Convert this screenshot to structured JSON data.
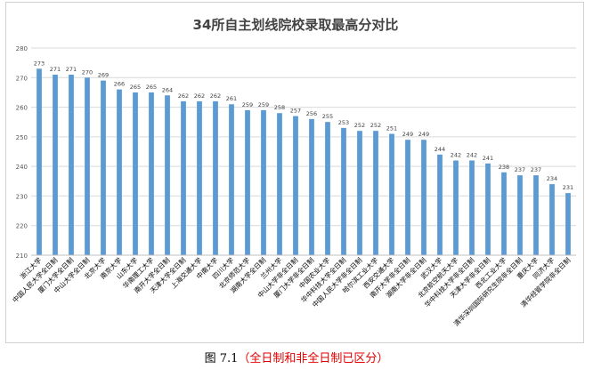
{
  "chart_data": {
    "type": "bar",
    "title": "34所自主划线院校录取最高分对比",
    "ylim": [
      210,
      280
    ],
    "yticks": [
      210,
      220,
      230,
      240,
      250,
      260,
      270,
      280
    ],
    "grid": true,
    "categories": [
      "浙江大学",
      "中国人民大学全日制",
      "厦门大学全日制",
      "中山大学全日制",
      "北京大学",
      "南京大学",
      "山东大学",
      "华南理工大学",
      "南开大学全日制",
      "天津大学全日制",
      "上海交通大学",
      "中南大学",
      "四川大学",
      "北京师范大学",
      "湖南大学全日制",
      "兰州大学",
      "中山大学非全日制",
      "厦门大学非全日制",
      "中国农业大学",
      "华中科技大学全日制",
      "中国人民大学非全日制",
      "哈尔滨工业大学",
      "西安交通大学",
      "南开大学非全日制",
      "湖南大学非全日制",
      "武汉大学",
      "北京航空航天大学",
      "华中科技大学非全日制",
      "天津大学非全日制",
      "西北工业大学",
      "清华深圳国际研究生院非全日制",
      "重庆大学",
      "同济大学",
      "清华经管学院非全日制"
    ],
    "values": [
      273,
      271,
      271,
      270,
      269,
      266,
      265,
      265,
      264,
      262,
      262,
      262,
      261,
      259,
      259,
      258,
      257,
      256,
      255,
      253,
      252,
      252,
      251,
      249,
      249,
      244,
      242,
      242,
      241,
      238,
      237,
      237,
      234,
      231
    ],
    "bar_color": "#5b9bd5"
  },
  "caption": {
    "label": "图 7.1",
    "note": "（全日制和非全日制已区分）"
  }
}
